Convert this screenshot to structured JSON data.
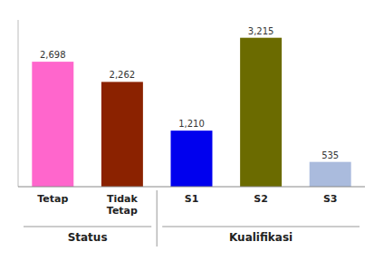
{
  "chart_data": {
    "type": "bar",
    "categories": [
      "Tetap",
      "Tidak\nTetap",
      "S1",
      "S2",
      "S3"
    ],
    "values": [
      2698,
      2262,
      1210,
      3215,
      535
    ],
    "value_labels": [
      "2,698",
      "2,262",
      "1,210",
      "3,215",
      "535"
    ],
    "colors": [
      "#FF66CC",
      "#8B2200",
      "#0000EE",
      "#6B6B00",
      "#AABBDD"
    ],
    "ylim": [
      0,
      3600
    ],
    "data_labels": true,
    "tick_labels": "x",
    "grid": false,
    "annotations": [
      "Status",
      "Kualifikasi"
    ]
  }
}
